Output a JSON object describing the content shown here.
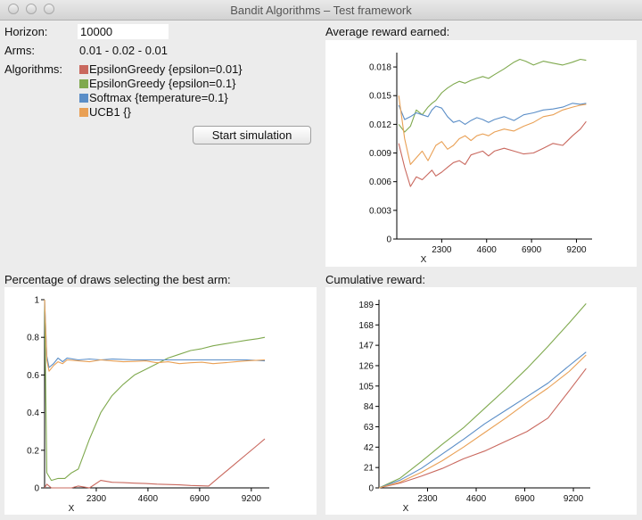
{
  "window": {
    "title": "Bandit Algorithms – Test framework"
  },
  "form": {
    "horizon_label": "Horizon:",
    "horizon_value": "10000",
    "arms_label": "Arms:",
    "arms_value": "0.01 - 0.02 - 0.01",
    "algorithms_label": "Algorithms:",
    "algorithms": [
      {
        "label": "EpsilonGreedy {epsilon=0.01}",
        "color": "#c9685e"
      },
      {
        "label": "EpsilonGreedy {epsilon=0.1}",
        "color": "#7fa94e"
      },
      {
        "label": "Softmax {temperature=0.1}",
        "color": "#5b8ec7"
      },
      {
        "label": "UCB1 {}",
        "color": "#e9a055"
      }
    ],
    "start_button": "Start simulation"
  },
  "panels": {
    "avg_title": "Average reward earned:",
    "best_title": "Percentage of draws selecting the best arm:",
    "cum_title": "Cumulative reward:"
  },
  "chart_data": [
    {
      "id": "avg",
      "type": "line",
      "xlabel": "X",
      "xticks": [
        2300,
        4600,
        6900,
        9200
      ],
      "xlim": [
        0,
        10000
      ],
      "yticks": [
        "0",
        "0.003",
        "0.006",
        "0.009",
        "0.012",
        "0.015",
        "0.018"
      ],
      "ylim": [
        0,
        0.0195
      ],
      "series": [
        {
          "color": "#c9685e",
          "x": [
            100,
            400,
            700,
            1000,
            1300,
            1600,
            1800,
            2000,
            2300,
            2600,
            2900,
            3200,
            3500,
            3800,
            4100,
            4400,
            4700,
            5000,
            5500,
            6000,
            6500,
            7000,
            7500,
            8000,
            8500,
            9000,
            9400,
            9700
          ],
          "y": [
            0.01,
            0.0075,
            0.0055,
            0.0065,
            0.0062,
            0.0068,
            0.0072,
            0.0066,
            0.007,
            0.0075,
            0.008,
            0.0082,
            0.0078,
            0.0088,
            0.009,
            0.0092,
            0.0087,
            0.0092,
            0.0095,
            0.0092,
            0.0089,
            0.009,
            0.0095,
            0.01,
            0.0098,
            0.0108,
            0.0115,
            0.0123
          ]
        },
        {
          "color": "#7fa94e",
          "x": [
            100,
            400,
            700,
            1000,
            1300,
            1600,
            1800,
            2000,
            2300,
            2600,
            2900,
            3200,
            3500,
            3800,
            4100,
            4400,
            4700,
            5000,
            5500,
            6000,
            6300,
            6600,
            7000,
            7500,
            8000,
            8500,
            9000,
            9400,
            9700
          ],
          "y": [
            0.012,
            0.0112,
            0.0118,
            0.0135,
            0.013,
            0.0138,
            0.0142,
            0.0145,
            0.0153,
            0.0158,
            0.0162,
            0.0165,
            0.0163,
            0.0166,
            0.0168,
            0.017,
            0.0168,
            0.0172,
            0.0178,
            0.0185,
            0.0188,
            0.0186,
            0.0182,
            0.0186,
            0.0184,
            0.0182,
            0.0185,
            0.0188,
            0.0187
          ]
        },
        {
          "color": "#5b8ec7",
          "x": [
            100,
            400,
            700,
            1000,
            1300,
            1600,
            1800,
            2000,
            2300,
            2600,
            2900,
            3200,
            3500,
            3800,
            4100,
            4400,
            4700,
            5000,
            5500,
            6000,
            6500,
            7000,
            7500,
            8000,
            8500,
            9000,
            9400,
            9700
          ],
          "y": [
            0.014,
            0.0125,
            0.0128,
            0.0132,
            0.013,
            0.0128,
            0.0135,
            0.0139,
            0.0137,
            0.0128,
            0.0122,
            0.0124,
            0.012,
            0.0124,
            0.0127,
            0.0125,
            0.0122,
            0.0125,
            0.0128,
            0.0124,
            0.013,
            0.0132,
            0.0135,
            0.0136,
            0.0138,
            0.0142,
            0.0141,
            0.0142
          ]
        },
        {
          "color": "#e9a055",
          "x": [
            100,
            400,
            700,
            1000,
            1300,
            1600,
            1800,
            2000,
            2300,
            2600,
            2900,
            3200,
            3500,
            3800,
            4100,
            4400,
            4700,
            5000,
            5500,
            6000,
            6500,
            7000,
            7500,
            8000,
            8500,
            9000,
            9400,
            9700
          ],
          "y": [
            0.015,
            0.0105,
            0.0078,
            0.0085,
            0.0092,
            0.0082,
            0.009,
            0.0098,
            0.0102,
            0.0094,
            0.0098,
            0.0105,
            0.0108,
            0.0103,
            0.0108,
            0.011,
            0.0108,
            0.0112,
            0.0115,
            0.0113,
            0.0118,
            0.0122,
            0.0128,
            0.013,
            0.0135,
            0.0138,
            0.014,
            0.0141
          ]
        }
      ]
    },
    {
      "id": "best",
      "type": "line",
      "xlabel": "X",
      "xticks": [
        2300,
        4600,
        6900,
        9200
      ],
      "xlim": [
        0,
        10000
      ],
      "yticks": [
        "0",
        "0.2",
        "0.4",
        "0.6",
        "0.8",
        "1"
      ],
      "ylim": [
        0,
        1.0
      ],
      "series": [
        {
          "color": "#c9685e",
          "x": [
            0,
            100,
            300,
            600,
            900,
            1200,
            1500,
            2000,
            2500,
            3000,
            3500,
            4000,
            4500,
            5000,
            5500,
            6000,
            6500,
            7000,
            7300,
            7600,
            8000,
            8500,
            9000,
            9500,
            9800
          ],
          "y": [
            0.0,
            0.02,
            0.0,
            0.0,
            0.0,
            0.0,
            0.01,
            0.0,
            0.04,
            0.03,
            0.028,
            0.025,
            0.023,
            0.02,
            0.018,
            0.016,
            0.013,
            0.011,
            0.01,
            0.04,
            0.08,
            0.13,
            0.18,
            0.23,
            0.26
          ]
        },
        {
          "color": "#7fa94e",
          "x": [
            0,
            100,
            300,
            600,
            900,
            1200,
            1500,
            2000,
            2500,
            3000,
            3500,
            4000,
            4500,
            5000,
            5500,
            6000,
            6500,
            7000,
            7500,
            8000,
            8500,
            9000,
            9500,
            9800
          ],
          "y": [
            1.0,
            0.08,
            0.04,
            0.05,
            0.05,
            0.08,
            0.1,
            0.26,
            0.4,
            0.49,
            0.55,
            0.6,
            0.63,
            0.66,
            0.69,
            0.71,
            0.73,
            0.74,
            0.755,
            0.765,
            0.775,
            0.785,
            0.793,
            0.8
          ]
        },
        {
          "color": "#5b8ec7",
          "x": [
            0,
            100,
            200,
            400,
            600,
            800,
            1000,
            1500,
            2000,
            2500,
            3000,
            4000,
            5000,
            6000,
            7000,
            8000,
            9000,
            9800
          ],
          "y": [
            1.0,
            0.7,
            0.64,
            0.66,
            0.69,
            0.67,
            0.69,
            0.68,
            0.685,
            0.68,
            0.685,
            0.68,
            0.68,
            0.68,
            0.68,
            0.68,
            0.68,
            0.675
          ]
        },
        {
          "color": "#e9a055",
          "x": [
            0,
            100,
            200,
            400,
            600,
            800,
            1000,
            1500,
            2000,
            2500,
            3000,
            3500,
            4000,
            4500,
            5000,
            5500,
            6000,
            6500,
            7000,
            7500,
            8000,
            8500,
            9000,
            9800
          ],
          "y": [
            1.0,
            0.68,
            0.62,
            0.65,
            0.67,
            0.66,
            0.68,
            0.675,
            0.67,
            0.68,
            0.675,
            0.67,
            0.672,
            0.675,
            0.665,
            0.67,
            0.66,
            0.665,
            0.668,
            0.66,
            0.665,
            0.67,
            0.675,
            0.68
          ]
        }
      ]
    },
    {
      "id": "cum",
      "type": "line",
      "xlabel": "X",
      "xticks": [
        2300,
        4600,
        6900,
        9200
      ],
      "xlim": [
        0,
        10000
      ],
      "yticks": [
        "0",
        "21",
        "42",
        "63",
        "84",
        "105",
        "126",
        "147",
        "168",
        "189"
      ],
      "ylim": [
        0,
        194
      ],
      "series": [
        {
          "color": "#c9685e",
          "x": [
            0,
            1000,
            2000,
            3000,
            4000,
            5000,
            6000,
            7000,
            8000,
            9000,
            9800
          ],
          "y": [
            0,
            5,
            12,
            20,
            30,
            38,
            48,
            58,
            72,
            100,
            123
          ]
        },
        {
          "color": "#7fa94e",
          "x": [
            0,
            1000,
            2000,
            3000,
            4000,
            5000,
            6000,
            7000,
            8000,
            9000,
            9800
          ],
          "y": [
            0,
            10,
            27,
            45,
            62,
            82,
            102,
            123,
            146,
            170,
            190
          ]
        },
        {
          "color": "#5b8ec7",
          "x": [
            0,
            1000,
            2000,
            3000,
            4000,
            5000,
            6000,
            7000,
            8000,
            9000,
            9800
          ],
          "y": [
            0,
            8,
            20,
            35,
            50,
            66,
            80,
            94,
            108,
            126,
            140
          ]
        },
        {
          "color": "#e9a055",
          "x": [
            0,
            1000,
            2000,
            3000,
            4000,
            5000,
            6000,
            7000,
            8000,
            9000,
            9800
          ],
          "y": [
            0,
            6,
            16,
            28,
            42,
            57,
            72,
            88,
            103,
            120,
            137
          ]
        }
      ]
    }
  ]
}
